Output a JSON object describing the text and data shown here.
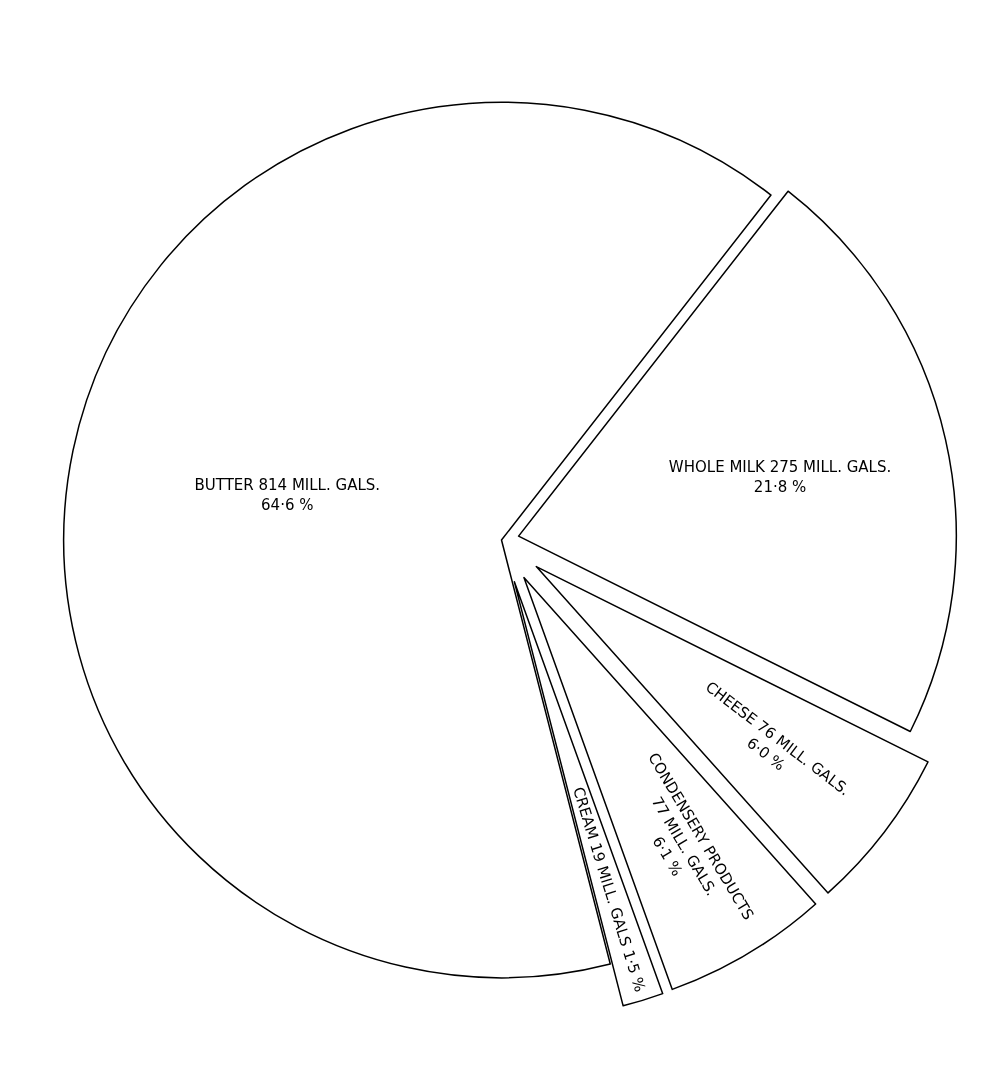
{
  "chart_data": {
    "type": "pie",
    "categories": [
      "WHOLE MILK",
      "CHEESE",
      "CONDENSERY PRODUCTS",
      "CREAM",
      "BUTTER"
    ],
    "values": [
      275,
      76,
      77,
      19,
      814
    ],
    "colors": [
      "#ffffff",
      "#ffffff",
      "#ffffff",
      "#ffffff",
      "#ffffff"
    ],
    "value_labels": [
      " 275 MILL. GALS.\n21·8 %",
      " 76 MILL. GALS.\n6·0 %",
      "\n77 MILL. GALS.\n6·1 %",
      " 19 MILL. GALS 1·5 %",
      " 814 MILL. GALS.\n64·6 %"
    ],
    "legend": false
  }
}
